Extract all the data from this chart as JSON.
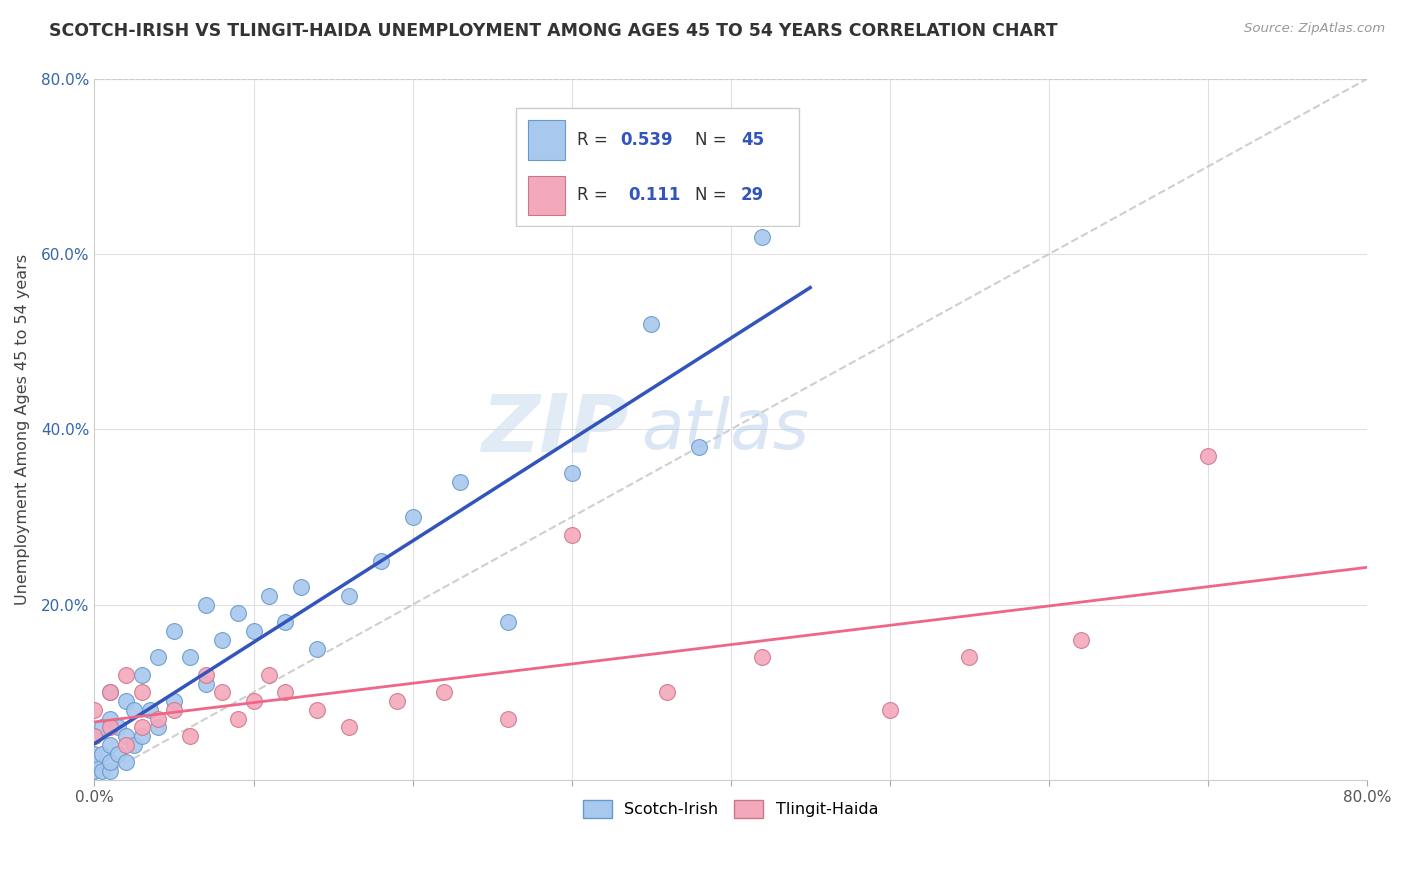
{
  "title": "SCOTCH-IRISH VS TLINGIT-HAIDA UNEMPLOYMENT AMONG AGES 45 TO 54 YEARS CORRELATION CHART",
  "source": "Source: ZipAtlas.com",
  "ylabel": "Unemployment Among Ages 45 to 54 years",
  "xlim": [
    0.0,
    0.8
  ],
  "ylim": [
    0.0,
    0.8
  ],
  "scotch_irish_color": "#A8C8EE",
  "scotch_irish_edge": "#6699CC",
  "tlingit_haida_color": "#F4A8BC",
  "tlingit_haida_edge": "#CC7788",
  "scotch_irish_line_color": "#3355BB",
  "tlingit_haida_line_color": "#EE6688",
  "diagonal_color": "#BBBBBB",
  "R_scotch": 0.539,
  "N_scotch": 45,
  "R_tlingit": 0.111,
  "N_tlingit": 29,
  "watermark_zip": "ZIP",
  "watermark_atlas": "atlas",
  "scotch_x": [
    0.0,
    0.0,
    0.0,
    0.0,
    0.005,
    0.005,
    0.005,
    0.01,
    0.01,
    0.01,
    0.01,
    0.01,
    0.015,
    0.015,
    0.02,
    0.02,
    0.02,
    0.025,
    0.025,
    0.03,
    0.03,
    0.035,
    0.04,
    0.04,
    0.05,
    0.05,
    0.06,
    0.07,
    0.07,
    0.08,
    0.09,
    0.1,
    0.11,
    0.12,
    0.13,
    0.14,
    0.16,
    0.18,
    0.2,
    0.23,
    0.26,
    0.3,
    0.35,
    0.38,
    0.42
  ],
  "scotch_y": [
    0.01,
    0.02,
    0.03,
    0.05,
    0.01,
    0.03,
    0.06,
    0.01,
    0.02,
    0.04,
    0.07,
    0.1,
    0.03,
    0.06,
    0.02,
    0.05,
    0.09,
    0.04,
    0.08,
    0.05,
    0.12,
    0.08,
    0.06,
    0.14,
    0.09,
    0.17,
    0.14,
    0.11,
    0.2,
    0.16,
    0.19,
    0.17,
    0.21,
    0.18,
    0.22,
    0.15,
    0.21,
    0.25,
    0.3,
    0.34,
    0.18,
    0.35,
    0.52,
    0.38,
    0.62
  ],
  "tlingit_x": [
    0.0,
    0.0,
    0.01,
    0.01,
    0.02,
    0.02,
    0.03,
    0.03,
    0.04,
    0.05,
    0.06,
    0.07,
    0.08,
    0.09,
    0.1,
    0.11,
    0.12,
    0.14,
    0.16,
    0.19,
    0.22,
    0.26,
    0.3,
    0.36,
    0.42,
    0.5,
    0.55,
    0.62,
    0.7
  ],
  "tlingit_y": [
    0.05,
    0.08,
    0.06,
    0.1,
    0.04,
    0.12,
    0.06,
    0.1,
    0.07,
    0.08,
    0.05,
    0.12,
    0.1,
    0.07,
    0.09,
    0.12,
    0.1,
    0.08,
    0.06,
    0.09,
    0.1,
    0.07,
    0.28,
    0.1,
    0.14,
    0.08,
    0.14,
    0.16,
    0.37
  ]
}
